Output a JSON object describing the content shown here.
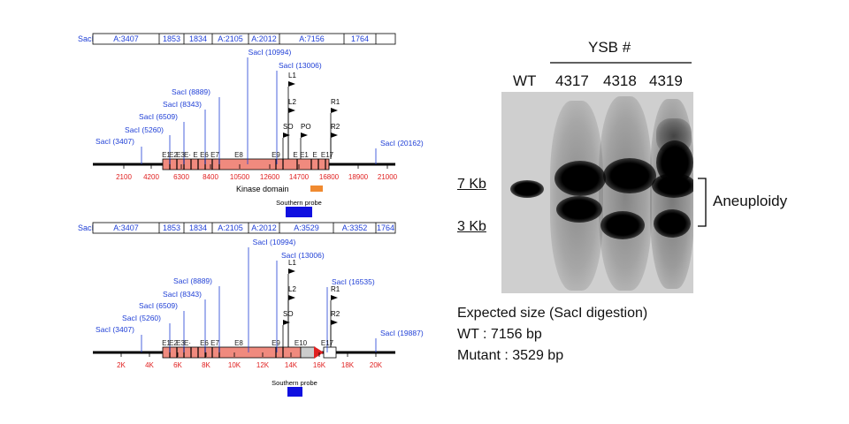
{
  "map_top": {
    "frag_label": "SacI",
    "fragments": [
      "A:3407",
      "1853",
      "1834",
      "A:2105",
      "A:2012",
      "A:7156",
      "1764"
    ],
    "sites": [
      "SacI (3407)",
      "SacI (5260)",
      "SacI (6509)",
      "SacI (8343)",
      "SacI (8889)",
      "SacI (10994)",
      "SacI (13006)",
      "SacI (20162)"
    ],
    "exons": [
      "E1",
      "E2",
      "E3",
      "E·",
      "E",
      "E6",
      "E7",
      "E8",
      "E9",
      "E",
      "E1",
      "E",
      "E17"
    ],
    "primers": [
      "L1",
      "L2",
      "SO",
      "PO",
      "R1",
      "R2"
    ],
    "ticks": [
      "2100",
      "4200",
      "6300",
      "8400",
      "10500",
      "12600",
      "14700",
      "16800",
      "18900",
      "21000"
    ],
    "kinase_label": "Kinase domain",
    "probe_label": "Southern probe"
  },
  "map_bottom": {
    "frag_label": "SacI",
    "fragments": [
      "A:3407",
      "1853",
      "1834",
      "A:2105",
      "A:2012",
      "A:3529",
      "A:3352",
      "1764"
    ],
    "sites": [
      "SacI (3407)",
      "SacI (5260)",
      "SacI (6509)",
      "SacI (8343)",
      "SacI (8889)",
      "SacI (10994)",
      "SacI (13006)",
      "SacI (16535)",
      "SacI (19887)"
    ],
    "exons": [
      "E1",
      "E2",
      "E3",
      "E·",
      "E6",
      "E7",
      "E8",
      "E9",
      "E10",
      "E17"
    ],
    "primers": [
      "L1",
      "L2",
      "SO",
      "R1",
      "R2"
    ],
    "ticks": [
      "2K",
      "4K",
      "6K",
      "8K",
      "10K",
      "12K",
      "14K",
      "16K",
      "18K",
      "20K"
    ],
    "probe_label": "Southern probe"
  },
  "blot": {
    "group_label": "YSB #",
    "lanes": [
      "WT",
      "4317",
      "4318",
      "4319"
    ],
    "markers": [
      "7 Kb",
      "3 Kb"
    ],
    "bracket_label": "Aneuploidy"
  },
  "caption": {
    "line1": "Expected size (SacI digestion)",
    "line2": "WT : 7156 bp",
    "line3": "Mutant : 3529 bp"
  },
  "colors": {
    "site_blue": "#1f3fd6",
    "exon_fill": "#f08a7e",
    "tick_red": "#e02020",
    "kinase_orange": "#f08a30",
    "probe_blue": "#1010e0"
  }
}
